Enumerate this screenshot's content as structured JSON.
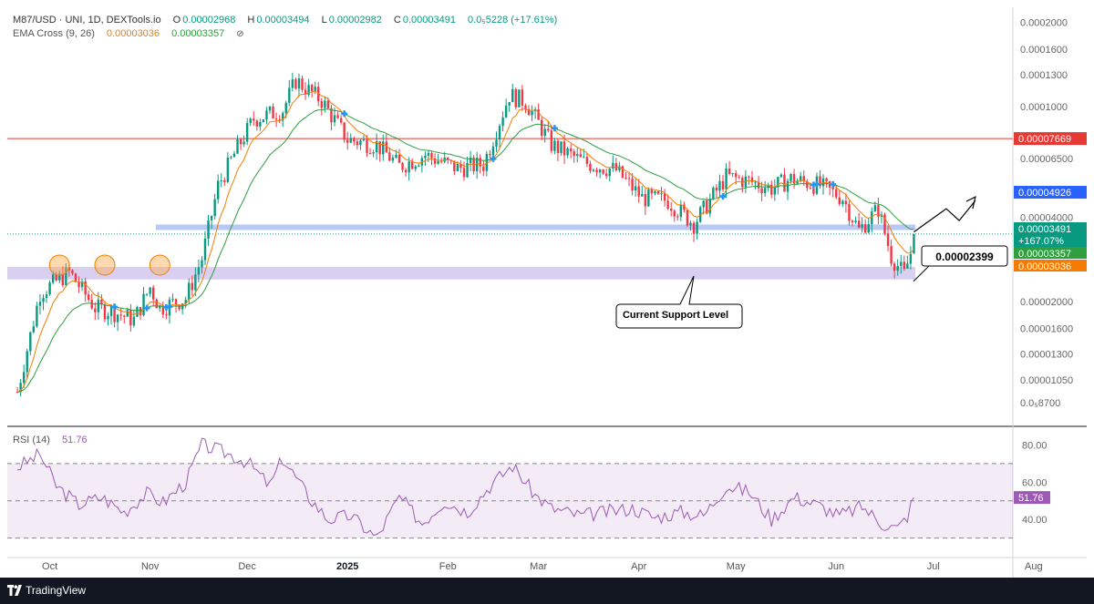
{
  "legend": {
    "symbol": "M87/USD · UNI, 1D, DEXTools.io",
    "o_label": "O",
    "o": "0.00002968",
    "h_label": "H",
    "h": "0.00003494",
    "l_label": "L",
    "l": "0.00002982",
    "c_label": "C",
    "c": "0.00003491",
    "change": "0.0₅5228 (+17.61%)",
    "ema_label": "EMA Cross (9, 26)",
    "ema_fast": "0.00003036",
    "ema_slow": "0.00003357",
    "ema_icon": "eye-off-icon"
  },
  "rsi_legend": {
    "label": "RSI (14)",
    "value": "51.76"
  },
  "colors": {
    "up": "#089981",
    "down": "#f23645",
    "ema_fast": "#f57c00",
    "ema_slow": "#2e9e3e",
    "resistance": "#e53935",
    "rsi": "#9c5ab5",
    "blue_badge": "#2962ff",
    "footer_bg": "#131722"
  },
  "annotations": {
    "support_callout": "Current Support Level",
    "price_callout": "0.00002399"
  },
  "price_badges": {
    "resistance": "0.00007669",
    "blue": "0.00004926",
    "close": "0.00003491",
    "close_pct": "+167.07%",
    "ema_slow": "0.00003357",
    "ema_fast": "0.00003036"
  },
  "footer": {
    "brand": "TradingView",
    "logo_icon": "tradingview-logo-icon"
  },
  "chart_data": {
    "type": "candlestick",
    "y_scale": "log",
    "price_axis_labels": [
      "0.0002000",
      "0.0001600",
      "0.0001300",
      "0.0001000",
      "0.00006500",
      "0.00004900",
      "0.00004000",
      "0.00002000",
      "0.00001600",
      "0.00001300",
      "0.00001050",
      "0.0₅8700"
    ],
    "price_axis_values": [
      0.0002,
      0.00016,
      0.00013,
      0.0001,
      6.5e-05,
      4.9e-05,
      4e-05,
      2e-05,
      1.6e-05,
      1.3e-05,
      1.05e-05,
      8.7e-06
    ],
    "x_axis_labels": [
      "Oct",
      "Nov",
      "Dec",
      "2025",
      "Feb",
      "Mar",
      "Apr",
      "May",
      "Jun",
      "Jul",
      "Aug"
    ],
    "x_axis_dates": [
      "2024-10-01",
      "2024-11-01",
      "2024-12-01",
      "2025-01-01",
      "2025-02-01",
      "2025-03-01",
      "2025-04-01",
      "2025-05-01",
      "2025-06-01",
      "2025-07-01",
      "2025-08-01"
    ],
    "price_range": [
      7.2e-06,
      0.00021
    ],
    "horizontal_levels": {
      "resistance": 7.669e-05,
      "support_zone_top": 2.66e-05,
      "support_zone_bottom": 2.4e-05,
      "mid_zone": 3.69e-05,
      "current_support": 2.399e-05
    },
    "price_path": [
      [
        "2024-09-21",
        9.5e-06
      ],
      [
        "2024-09-28",
        2.15e-05
      ],
      [
        "2024-10-07",
        2.55e-05
      ],
      [
        "2024-10-15",
        1.9e-05
      ],
      [
        "2024-10-20",
        1.85e-05
      ],
      [
        "2024-10-27",
        1.72e-05
      ],
      [
        "2024-11-01",
        2.25e-05
      ],
      [
        "2024-11-04",
        1.9e-05
      ],
      [
        "2024-11-12",
        2.05e-05
      ],
      [
        "2024-11-17",
        2.85e-05
      ],
      [
        "2024-11-22",
        5.2e-05
      ],
      [
        "2024-11-28",
        7.1e-05
      ],
      [
        "2024-12-03",
        9e-05
      ],
      [
        "2024-12-12",
        9.7e-05
      ],
      [
        "2024-12-16",
        0.000124
      ],
      [
        "2024-12-24",
        0.000105
      ],
      [
        "2025-01-01",
        7.6e-05
      ],
      [
        "2025-01-10",
        7.3e-05
      ],
      [
        "2025-01-17",
        6.1e-05
      ],
      [
        "2025-01-25",
        6.7e-05
      ],
      [
        "2025-02-04",
        6e-05
      ],
      [
        "2025-02-12",
        6.2e-05
      ],
      [
        "2025-02-20",
        0.00011
      ],
      [
        "2025-02-25",
        0.000104
      ],
      [
        "2025-03-05",
        7.3e-05
      ],
      [
        "2025-03-15",
        6.3e-05
      ],
      [
        "2025-03-25",
        5.9e-05
      ],
      [
        "2025-04-02",
        4.7e-05
      ],
      [
        "2025-04-10",
        4.6e-05
      ],
      [
        "2025-04-18",
        3.8e-05
      ],
      [
        "2025-04-28",
        5.6e-05
      ],
      [
        "2025-05-05",
        5.4e-05
      ],
      [
        "2025-05-12",
        5.1e-05
      ],
      [
        "2025-05-18",
        5.5e-05
      ],
      [
        "2025-05-27",
        5.2e-05
      ],
      [
        "2025-06-03",
        4.7e-05
      ],
      [
        "2025-06-08",
        3.6e-05
      ],
      [
        "2025-06-14",
        4.3e-05
      ],
      [
        "2025-06-18",
        2.9e-05
      ],
      [
        "2025-06-22",
        2.5e-05
      ],
      [
        "2025-06-24",
        2.98e-05
      ],
      [
        "2025-06-25",
        3.491e-05
      ]
    ],
    "rsi": {
      "period": 14,
      "last": 51.76,
      "axis_labels": [
        "80.00",
        "60.00",
        "40.00"
      ],
      "axis_values": [
        80,
        60,
        40
      ],
      "bands": [
        70,
        30
      ],
      "mid": 50,
      "range": [
        20,
        90
      ],
      "path": [
        [
          "2024-09-21",
          68
        ],
        [
          "2024-09-28",
          75
        ],
        [
          "2024-10-03",
          58
        ],
        [
          "2024-10-10",
          48
        ],
        [
          "2024-10-17",
          52
        ],
        [
          "2024-10-24",
          44
        ],
        [
          "2024-10-31",
          54
        ],
        [
          "2024-11-05",
          49
        ],
        [
          "2024-11-12",
          60
        ],
        [
          "2024-11-17",
          80
        ],
        [
          "2024-11-24",
          76
        ],
        [
          "2024-12-01",
          71
        ],
        [
          "2024-12-08",
          58
        ],
        [
          "2024-12-12",
          73
        ],
        [
          "2024-12-20",
          52
        ],
        [
          "2024-12-26",
          40
        ],
        [
          "2025-01-02",
          42
        ],
        [
          "2025-01-10",
          30
        ],
        [
          "2025-01-17",
          52
        ],
        [
          "2025-01-24",
          38
        ],
        [
          "2025-01-31",
          50
        ],
        [
          "2025-02-07",
          44
        ],
        [
          "2025-02-14",
          58
        ],
        [
          "2025-02-21",
          69
        ],
        [
          "2025-02-28",
          53
        ],
        [
          "2025-03-05",
          46
        ],
        [
          "2025-03-14",
          42
        ],
        [
          "2025-03-22",
          44
        ],
        [
          "2025-03-30",
          46
        ],
        [
          "2025-04-06",
          41
        ],
        [
          "2025-04-14",
          44
        ],
        [
          "2025-04-21",
          42
        ],
        [
          "2025-04-28",
          58
        ],
        [
          "2025-05-05",
          55
        ],
        [
          "2025-05-12",
          40
        ],
        [
          "2025-05-19",
          52
        ],
        [
          "2025-05-26",
          48
        ],
        [
          "2025-06-02",
          42
        ],
        [
          "2025-06-09",
          47
        ],
        [
          "2025-06-15",
          38
        ],
        [
          "2025-06-20",
          35
        ],
        [
          "2025-06-23",
          42
        ],
        [
          "2025-06-25",
          51.76
        ]
      ]
    }
  }
}
